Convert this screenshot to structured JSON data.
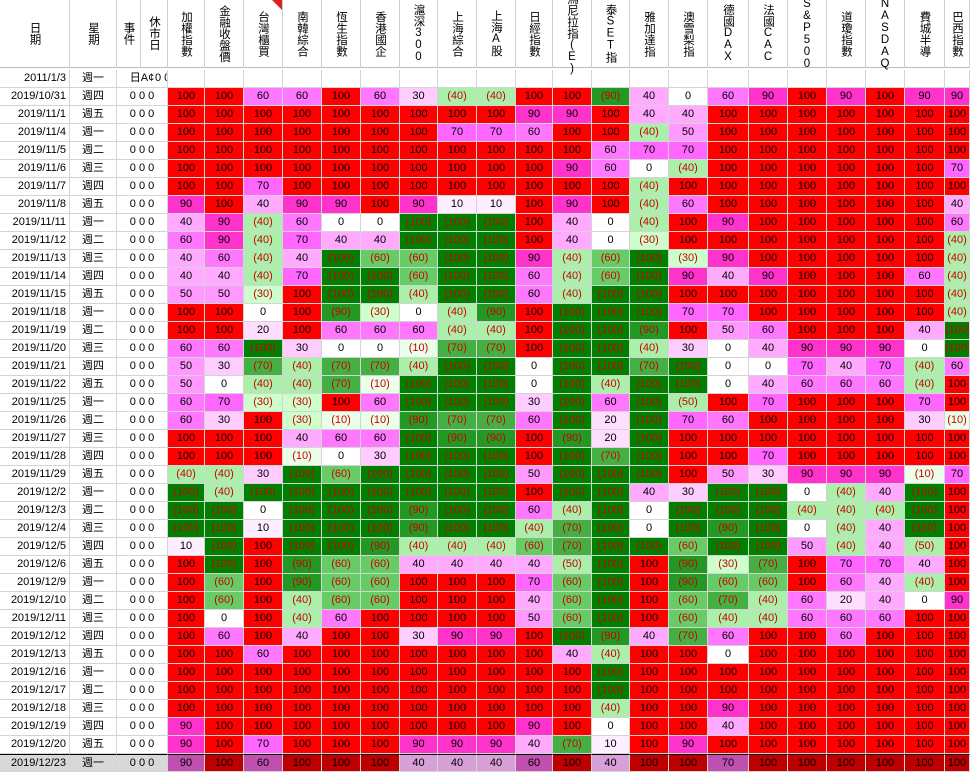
{
  "sheet": {
    "headers": [
      {
        "key": "date",
        "label": "日期"
      },
      {
        "key": "weekday",
        "label": "星期"
      },
      {
        "key": "event",
        "label": "事件"
      },
      {
        "key": "closed",
        "label": "休市日"
      },
      {
        "key": "c1",
        "label": "加權指數"
      },
      {
        "key": "c2",
        "label": "金融收盤價"
      },
      {
        "key": "c3",
        "label": "台灣櫃買"
      },
      {
        "key": "c4",
        "label": "南韓綜合"
      },
      {
        "key": "c5",
        "label": "恆生指數"
      },
      {
        "key": "c6",
        "label": "香港國企"
      },
      {
        "key": "c7",
        "label": "滬深300"
      },
      {
        "key": "c8",
        "label": "上海綜合"
      },
      {
        "key": "c9",
        "label": "上海A股"
      },
      {
        "key": "c10",
        "label": "日經指數"
      },
      {
        "key": "c11",
        "label": "馬尼拉指(E)"
      },
      {
        "key": "c12",
        "label": "泰SET指"
      },
      {
        "key": "c13",
        "label": "雅加達指"
      },
      {
        "key": "c14",
        "label": "澳雪梨指"
      },
      {
        "key": "c15",
        "label": "德國DAX"
      },
      {
        "key": "c16",
        "label": "法國CAC"
      },
      {
        "key": "c17",
        "label": "S&P500"
      },
      {
        "key": "c18",
        "label": "道瓊指數"
      },
      {
        "key": "c19",
        "label": "NASDAQ"
      },
      {
        "key": "c20",
        "label": "費城半導"
      },
      {
        "key": "c21",
        "label": "巴西指數"
      }
    ],
    "first_row": {
      "date": "2011/1/3",
      "weekday": "週一",
      "event": "日A¢",
      "flags": "0 0"
    },
    "rows": [
      {
        "d": "2019/10/31",
        "w": "週四",
        "v": [
          "100",
          "100",
          "60",
          "60",
          "100",
          "60",
          "30",
          "(40)",
          "(40)",
          "100",
          "100",
          "(90)",
          "40",
          "0",
          "60",
          "90",
          "100",
          "90",
          "100",
          "90",
          "90"
        ]
      },
      {
        "d": "2019/11/1",
        "w": "週五",
        "v": [
          "100",
          "100",
          "100",
          "100",
          "100",
          "100",
          "100",
          "100",
          "100",
          "90",
          "90",
          "100",
          "40",
          "40",
          "100",
          "100",
          "100",
          "100",
          "100",
          "100",
          "100"
        ]
      },
      {
        "d": "2019/11/4",
        "w": "週一",
        "v": [
          "100",
          "100",
          "100",
          "100",
          "100",
          "100",
          "100",
          "70",
          "70",
          "60",
          "100",
          "100",
          "(40)",
          "50",
          "100",
          "100",
          "100",
          "100",
          "100",
          "100",
          "100"
        ]
      },
      {
        "d": "2019/11/5",
        "w": "週二",
        "v": [
          "100",
          "100",
          "100",
          "100",
          "100",
          "100",
          "100",
          "100",
          "100",
          "100",
          "100",
          "60",
          "70",
          "70",
          "100",
          "100",
          "100",
          "100",
          "100",
          "100",
          "100"
        ]
      },
      {
        "d": "2019/11/6",
        "w": "週三",
        "v": [
          "100",
          "100",
          "100",
          "100",
          "100",
          "100",
          "100",
          "100",
          "100",
          "100",
          "90",
          "60",
          "0",
          "(40)",
          "100",
          "100",
          "100",
          "100",
          "100",
          "100",
          "70"
        ]
      },
      {
        "d": "2019/11/7",
        "w": "週四",
        "v": [
          "100",
          "100",
          "70",
          "100",
          "100",
          "100",
          "100",
          "100",
          "100",
          "100",
          "100",
          "100",
          "(40)",
          "100",
          "100",
          "100",
          "100",
          "100",
          "100",
          "100",
          "100"
        ]
      },
      {
        "d": "2019/11/8",
        "w": "週五",
        "v": [
          "90",
          "100",
          "40",
          "90",
          "90",
          "100",
          "90",
          "10",
          "10",
          "100",
          "90",
          "100",
          "(40)",
          "60",
          "100",
          "100",
          "100",
          "100",
          "100",
          "100",
          "40"
        ]
      },
      {
        "d": "2019/11/11",
        "w": "週一",
        "v": [
          "40",
          "90",
          "(40)",
          "60",
          "0",
          "0",
          "(100)",
          "(100)",
          "(100)",
          "100",
          "40",
          "0",
          "(40)",
          "100",
          "90",
          "100",
          "100",
          "100",
          "100",
          "100",
          "60"
        ]
      },
      {
        "d": "2019/11/12",
        "w": "週二",
        "v": [
          "60",
          "90",
          "(40)",
          "70",
          "40",
          "40",
          "(100)",
          "(100)",
          "(100)",
          "100",
          "40",
          "0",
          "(30)",
          "100",
          "100",
          "100",
          "100",
          "100",
          "100",
          "100",
          "(40)"
        ]
      },
      {
        "d": "2019/11/13",
        "w": "週三",
        "v": [
          "40",
          "60",
          "(40)",
          "40",
          "(100)",
          "(60)",
          "(60)",
          "(100)",
          "(100)",
          "90",
          "(40)",
          "(60)",
          "(100)",
          "(30)",
          "90",
          "100",
          "100",
          "100",
          "100",
          "100",
          "(40)"
        ]
      },
      {
        "d": "2019/11/14",
        "w": "週四",
        "v": [
          "40",
          "40",
          "(40)",
          "70",
          "(100)",
          "(100)",
          "(60)",
          "(100)",
          "(100)",
          "60",
          "(40)",
          "(60)",
          "(100)",
          "90",
          "40",
          "90",
          "100",
          "100",
          "100",
          "60",
          "(40)"
        ]
      },
      {
        "d": "2019/11/15",
        "w": "週五",
        "v": [
          "50",
          "50",
          "(30)",
          "100",
          "(100)",
          "(100)",
          "(40)",
          "(100)",
          "(100)",
          "60",
          "(40)",
          "(100)",
          "(100)",
          "100",
          "100",
          "100",
          "100",
          "100",
          "100",
          "100",
          "(40)"
        ]
      },
      {
        "d": "2019/11/18",
        "w": "週一",
        "v": [
          "100",
          "100",
          "0",
          "100",
          "(90)",
          "(30)",
          "0",
          "(40)",
          "(90)",
          "100",
          "(100)",
          "(100)",
          "(100)",
          "70",
          "70",
          "100",
          "100",
          "100",
          "100",
          "100",
          "(40)"
        ]
      },
      {
        "d": "2019/11/19",
        "w": "週二",
        "v": [
          "100",
          "100",
          "20",
          "100",
          "60",
          "60",
          "60",
          "(40)",
          "(40)",
          "100",
          "(100)",
          "(100)",
          "(90)",
          "100",
          "50",
          "60",
          "100",
          "100",
          "100",
          "40",
          "(100)"
        ]
      },
      {
        "d": "2019/11/20",
        "w": "週三",
        "v": [
          "60",
          "60",
          "(100)",
          "30",
          "0",
          "0",
          "(10)",
          "(70)",
          "(70)",
          "100",
          "(100)",
          "(100)",
          "(40)",
          "30",
          "0",
          "40",
          "90",
          "90",
          "90",
          "0",
          "(100)"
        ]
      },
      {
        "d": "2019/11/21",
        "w": "週四",
        "v": [
          "50",
          "30",
          "(70)",
          "(40)",
          "(70)",
          "(70)",
          "(40)",
          "(100)",
          "(100)",
          "0",
          "(100)",
          "(100)",
          "(70)",
          "(100)",
          "0",
          "0",
          "70",
          "40",
          "70",
          "(40)",
          "60"
        ]
      },
      {
        "d": "2019/11/22",
        "w": "週五",
        "v": [
          "50",
          "0",
          "(40)",
          "(40)",
          "(70)",
          "(10)",
          "(100)",
          "(100)",
          "(100)",
          "0",
          "(100)",
          "(40)",
          "(100)",
          "(100)",
          "0",
          "40",
          "60",
          "60",
          "60",
          "(40)",
          "100"
        ]
      },
      {
        "d": "2019/11/25",
        "w": "週一",
        "v": [
          "60",
          "70",
          "(30)",
          "(30)",
          "100",
          "60",
          "(100)",
          "(100)",
          "(100)",
          "30",
          "(100)",
          "60",
          "(100)",
          "(50)",
          "100",
          "70",
          "100",
          "100",
          "100",
          "70",
          "100"
        ]
      },
      {
        "d": "2019/11/26",
        "w": "週二",
        "v": [
          "60",
          "30",
          "100",
          "(30)",
          "(10)",
          "(10)",
          "(90)",
          "(70)",
          "(70)",
          "60",
          "(100)",
          "20",
          "(100)",
          "70",
          "60",
          "100",
          "100",
          "100",
          "100",
          "30",
          "(10)"
        ]
      },
      {
        "d": "2019/11/27",
        "w": "週三",
        "v": [
          "100",
          "100",
          "100",
          "40",
          "60",
          "60",
          "(100)",
          "(90)",
          "(90)",
          "100",
          "(90)",
          "20",
          "(100)",
          "100",
          "100",
          "100",
          "100",
          "100",
          "100",
          "100",
          "100"
        ]
      },
      {
        "d": "2019/11/28",
        "w": "週四",
        "v": [
          "100",
          "100",
          "100",
          "(10)",
          "0",
          "30",
          "(100)",
          "(100)",
          "(100)",
          "100",
          "(100)",
          "(70)",
          "(100)",
          "100",
          "100",
          "70",
          "100",
          "100",
          "100",
          "100",
          "100"
        ]
      },
      {
        "d": "2019/11/29",
        "w": "週五",
        "v": [
          "(40)",
          "(40)",
          "30",
          "(100)",
          "(60)",
          "(100)",
          "(100)",
          "(100)",
          "(100)",
          "50",
          "(100)",
          "(100)",
          "(100)",
          "100",
          "50",
          "30",
          "90",
          "90",
          "90",
          "(10)",
          "70"
        ]
      },
      {
        "d": "2019/12/2",
        "w": "週一",
        "v": [
          "(100)",
          "(40)",
          "(100)",
          "(100)",
          "(100)",
          "(100)",
          "(100)",
          "(100)",
          "(100)",
          "100",
          "(100)",
          "(100)",
          "40",
          "30",
          "(100)",
          "(100)",
          "0",
          "(40)",
          "40",
          "(100)",
          "100"
        ]
      },
      {
        "d": "2019/12/3",
        "w": "週二",
        "v": [
          "(100)",
          "(100)",
          "0",
          "(100)",
          "(100)",
          "(100)",
          "(90)",
          "(100)",
          "(100)",
          "60",
          "(40)",
          "(100)",
          "0",
          "(100)",
          "(100)",
          "(100)",
          "(40)",
          "(40)",
          "(40)",
          "(100)",
          "100"
        ]
      },
      {
        "d": "2019/12/4",
        "w": "週三",
        "v": [
          "(100)",
          "(100)",
          "10",
          "(100)",
          "(100)",
          "(100)",
          "(90)",
          "(100)",
          "(100)",
          "(40)",
          "(70)",
          "(100)",
          "0",
          "(100)",
          "(90)",
          "(100)",
          "0",
          "(40)",
          "40",
          "(100)",
          "100"
        ]
      },
      {
        "d": "2019/12/5",
        "w": "週四",
        "v": [
          "10",
          "(100)",
          "100",
          "(100)",
          "(100)",
          "(90)",
          "(40)",
          "(40)",
          "(40)",
          "(60)",
          "(70)",
          "(100)",
          "(100)",
          "(60)",
          "(100)",
          "(100)",
          "50",
          "(40)",
          "40",
          "(50)",
          "100"
        ]
      },
      {
        "d": "2019/12/6",
        "w": "週五",
        "v": [
          "100",
          "(100)",
          "100",
          "(90)",
          "(60)",
          "(60)",
          "40",
          "40",
          "40",
          "40",
          "(50)",
          "(100)",
          "100",
          "(90)",
          "(30)",
          "(70)",
          "100",
          "70",
          "70",
          "40",
          "100"
        ]
      },
      {
        "d": "2019/12/9",
        "w": "週一",
        "v": [
          "100",
          "(60)",
          "100",
          "(90)",
          "(60)",
          "(60)",
          "100",
          "100",
          "100",
          "70",
          "(60)",
          "(100)",
          "100",
          "(90)",
          "(60)",
          "(60)",
          "100",
          "60",
          "40",
          "(40)",
          "100"
        ]
      },
      {
        "d": "2019/12/10",
        "w": "週二",
        "v": [
          "100",
          "(60)",
          "100",
          "(40)",
          "(60)",
          "(60)",
          "100",
          "100",
          "100",
          "40",
          "(60)",
          "(100)",
          "100",
          "(60)",
          "(70)",
          "(40)",
          "60",
          "20",
          "40",
          "0",
          "90"
        ]
      },
      {
        "d": "2019/12/11",
        "w": "週三",
        "v": [
          "100",
          "0",
          "100",
          "(40)",
          "60",
          "100",
          "100",
          "100",
          "100",
          "50",
          "(60)",
          "(100)",
          "100",
          "(60)",
          "(40)",
          "(40)",
          "60",
          "60",
          "60",
          "100",
          "100"
        ]
      },
      {
        "d": "2019/12/12",
        "w": "週四",
        "v": [
          "100",
          "60",
          "100",
          "40",
          "100",
          "100",
          "30",
          "90",
          "90",
          "100",
          "(100)",
          "(90)",
          "40",
          "(70)",
          "60",
          "100",
          "100",
          "60",
          "100",
          "100",
          "100"
        ]
      },
      {
        "d": "2019/12/13",
        "w": "週五",
        "v": [
          "100",
          "100",
          "60",
          "100",
          "100",
          "100",
          "100",
          "100",
          "100",
          "100",
          "40",
          "(40)",
          "100",
          "100",
          "0",
          "100",
          "100",
          "100",
          "100",
          "100",
          "100"
        ]
      },
      {
        "d": "2019/12/16",
        "w": "週一",
        "v": [
          "100",
          "100",
          "100",
          "100",
          "100",
          "100",
          "100",
          "100",
          "100",
          "100",
          "100",
          "(100)",
          "100",
          "100",
          "100",
          "100",
          "100",
          "100",
          "100",
          "100",
          "100"
        ]
      },
      {
        "d": "2019/12/17",
        "w": "週二",
        "v": [
          "100",
          "100",
          "100",
          "100",
          "100",
          "100",
          "100",
          "100",
          "100",
          "100",
          "100",
          "(100)",
          "100",
          "100",
          "100",
          "100",
          "100",
          "100",
          "100",
          "100",
          "100"
        ]
      },
      {
        "d": "2019/12/18",
        "w": "週三",
        "v": [
          "100",
          "100",
          "100",
          "100",
          "100",
          "100",
          "100",
          "100",
          "100",
          "100",
          "100",
          "(40)",
          "100",
          "100",
          "90",
          "100",
          "100",
          "100",
          "100",
          "100",
          "100"
        ]
      },
      {
        "d": "2019/12/19",
        "w": "週四",
        "v": [
          "90",
          "100",
          "100",
          "100",
          "100",
          "100",
          "100",
          "100",
          "100",
          "90",
          "100",
          "0",
          "100",
          "100",
          "40",
          "100",
          "100",
          "100",
          "100",
          "100",
          "100"
        ]
      },
      {
        "d": "2019/12/20",
        "w": "週五",
        "v": [
          "90",
          "100",
          "70",
          "100",
          "100",
          "100",
          "90",
          "90",
          "90",
          "40",
          "(70)",
          "10",
          "100",
          "90",
          "100",
          "100",
          "100",
          "100",
          "100",
          "100",
          "100"
        ]
      },
      {
        "d": "2019/12/23",
        "w": "週一",
        "v": [
          "90",
          "100",
          "60",
          "100",
          "100",
          "100",
          "40",
          "40",
          "40",
          "60",
          "100",
          "40",
          "100",
          "100",
          "70",
          "100",
          "100",
          "100",
          "100",
          "100",
          "100"
        ]
      }
    ]
  },
  "colors": {
    "c100": "#ff0000",
    "c90": "#ff33cc",
    "c80": "#ff55dd",
    "c70": "#ff66ff",
    "c60": "#ff77ff",
    "c50": "#ff99ff",
    "c40": "#ffaaff",
    "c30": "#ffccff",
    "c20": "#ffddff",
    "c10": "#ffeeff",
    "c0": "#ffffff",
    "n10": "#eaffea",
    "n30": "#ccffcc",
    "n40": "#aaf0aa",
    "n60": "#66cc66",
    "n70": "#44b044",
    "n90": "#229922",
    "n100": "#008000",
    "text_pos": "#000000",
    "text_neg": "#cc0000"
  }
}
